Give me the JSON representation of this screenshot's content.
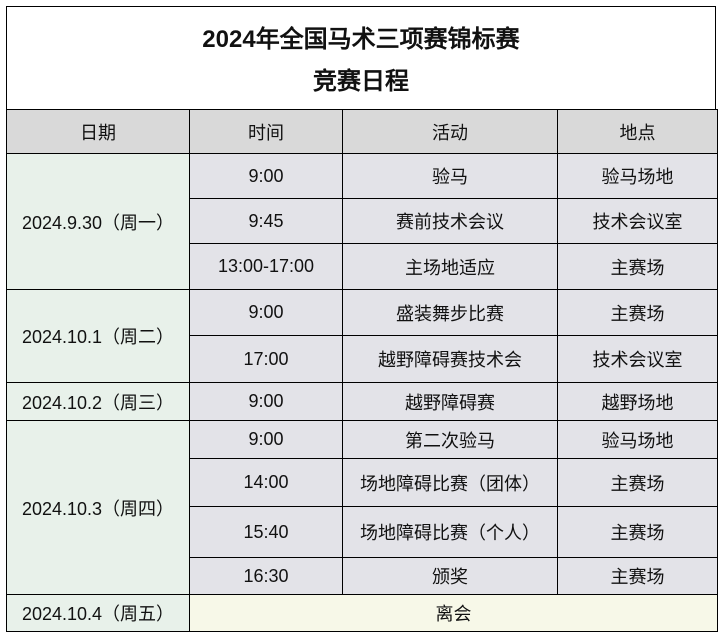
{
  "title": "2024年全国马术三项赛锦标赛",
  "subtitle": "竞赛日程",
  "headers": [
    "日期",
    "时间",
    "活动",
    "地点"
  ],
  "colors": {
    "header_bg": "#d9d9d9",
    "date_bg": "#e8f1ea",
    "cell_bg": "#e3e3e8",
    "last_row_bg": "#f7f8e8"
  },
  "days": [
    {
      "date": "2024.9.30（周一）",
      "events": [
        {
          "time": "9:00",
          "activity": "验马",
          "place": "验马场地"
        },
        {
          "time": "9:45",
          "activity": "赛前技术会议",
          "place": "技术会议室"
        },
        {
          "time": "13:00-17:00",
          "activity": "主场地适应",
          "place": "主赛场"
        }
      ]
    },
    {
      "date": "2024.10.1（周二）",
      "events": [
        {
          "time": "9:00",
          "activity": "盛装舞步比赛",
          "place": "主赛场"
        },
        {
          "time": "17:00",
          "activity": "越野障碍赛技术会",
          "place": "技术会议室"
        }
      ]
    },
    {
      "date": "2024.10.2（周三）",
      "events": [
        {
          "time": "9:00",
          "activity": "越野障碍赛",
          "place": "越野场地"
        }
      ]
    },
    {
      "date": "2024.10.3（周四）",
      "events": [
        {
          "time": "9:00",
          "activity": "第二次验马",
          "place": "验马场地"
        },
        {
          "time": "14:00",
          "activity": "场地障碍比赛（团体）",
          "place": "主赛场"
        },
        {
          "time": "15:40",
          "activity": "场地障碍比赛（个人）",
          "place": "主赛场"
        },
        {
          "time": "16:30",
          "activity": "颁奖",
          "place": "主赛场"
        }
      ]
    },
    {
      "date": "2024.10.4（周五）",
      "merged": "离会"
    }
  ]
}
